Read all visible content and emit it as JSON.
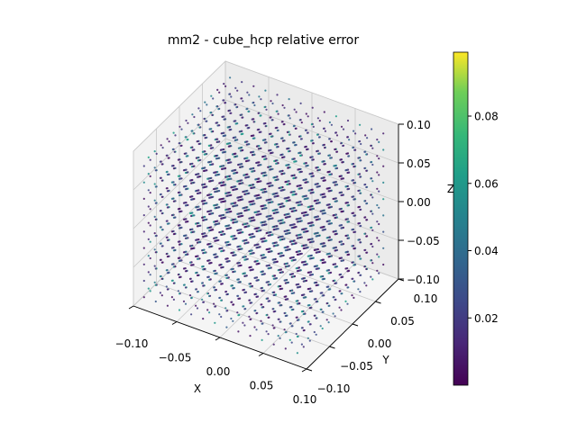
{
  "chart_data": {
    "type": "scatter3d",
    "title": "mm2 - cube_hcp relative error",
    "xlabel": "X",
    "ylabel": "Y",
    "zlabel": "Z",
    "xlim": [
      -0.1,
      0.1
    ],
    "ylim": [
      -0.1,
      0.1
    ],
    "zlim": [
      -0.1,
      0.1
    ],
    "x_ticks": [
      "−0.10",
      "−0.05",
      "0.00",
      "0.05",
      "0.10"
    ],
    "y_ticks": [
      "−0.10",
      "−0.05",
      "0.00",
      "0.05",
      "0.10"
    ],
    "z_ticks": [
      "−0.10",
      "−0.05",
      "0.00",
      "0.05",
      "0.10"
    ],
    "grid": true,
    "colormap": "viridis",
    "colorbar": {
      "range": [
        0.0,
        0.099
      ],
      "ticks": [
        "0.02",
        "0.04",
        "0.06",
        "0.08"
      ],
      "placement": "right"
    },
    "points_description_range": [
      0.0,
      0.099
    ]
  }
}
